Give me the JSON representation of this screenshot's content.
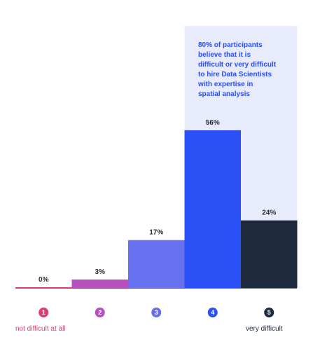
{
  "chart_data": {
    "type": "bar",
    "categories": [
      "1",
      "2",
      "3",
      "4",
      "5"
    ],
    "values": [
      0,
      3,
      17,
      56,
      24
    ],
    "value_labels": [
      "0%",
      "3%",
      "17%",
      "56%",
      "24%"
    ],
    "colors": [
      "#de3b79",
      "#b84fbf",
      "#6770ee",
      "#2a4ff5",
      "#1d2a3e"
    ],
    "ylim": [
      0,
      56
    ],
    "grid": false,
    "legend": "none",
    "axis_end_labels": {
      "left": "not difficult at all",
      "right": "very difficult"
    },
    "annotation": {
      "text": "80% of participants\nbelieve that it is\ndifficult or very difficult\nto hire Data Scientists\nwith expertise in\nspatial analysis",
      "highlight_categories": [
        "4",
        "5"
      ],
      "highlight_color": "#e8ebfb"
    }
  }
}
